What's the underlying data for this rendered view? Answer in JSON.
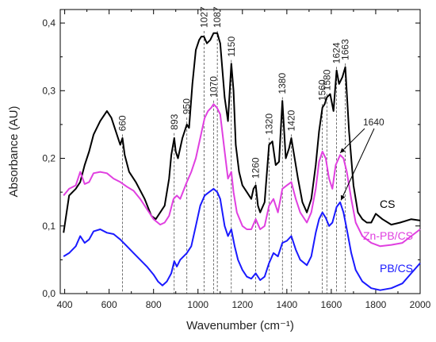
{
  "chart_data": {
    "type": "line",
    "title": "",
    "xlabel": "Wavenumber (cm⁻¹)",
    "ylabel": "Absorbance (AU)",
    "xlim": [
      380,
      2000
    ],
    "ylim": [
      0,
      0.42
    ],
    "x_ticks": [
      "400",
      "600",
      "800",
      "1000",
      "1200",
      "1400",
      "1600",
      "1800",
      "2000"
    ],
    "y_ticks": [
      "0,0",
      "0,1",
      "0,2",
      "0,3",
      "0,4"
    ],
    "x_tick_values": [
      400,
      600,
      800,
      1000,
      1200,
      1400,
      1600,
      1800,
      2000
    ],
    "y_tick_values": [
      0,
      0.1,
      0.2,
      0.3,
      0.4
    ],
    "grid": false,
    "series": [
      {
        "name": "CS",
        "color": "#000000",
        "x": [
          395,
          420,
          450,
          470,
          490,
          510,
          530,
          560,
          590,
          610,
          630,
          650,
          660,
          670,
          690,
          720,
          760,
          790,
          810,
          830,
          850,
          870,
          880,
          893,
          900,
          910,
          930,
          950,
          960,
          975,
          990,
          1005,
          1015,
          1027,
          1040,
          1055,
          1070,
          1087,
          1100,
          1120,
          1135,
          1150,
          1160,
          1170,
          1185,
          1200,
          1220,
          1240,
          1250,
          1260,
          1270,
          1280,
          1300,
          1320,
          1335,
          1350,
          1365,
          1380,
          1395,
          1410,
          1420,
          1430,
          1450,
          1470,
          1490,
          1510,
          1530,
          1545,
          1560,
          1570,
          1580,
          1595,
          1610,
          1624,
          1635,
          1650,
          1663,
          1680,
          1700,
          1720,
          1740,
          1760,
          1780,
          1800,
          1830,
          1870,
          1910,
          1960,
          2000
        ],
        "y": [
          0.09,
          0.145,
          0.155,
          0.165,
          0.19,
          0.21,
          0.235,
          0.255,
          0.27,
          0.26,
          0.24,
          0.22,
          0.23,
          0.205,
          0.18,
          0.165,
          0.14,
          0.115,
          0.11,
          0.12,
          0.13,
          0.17,
          0.205,
          0.23,
          0.21,
          0.2,
          0.23,
          0.25,
          0.245,
          0.31,
          0.36,
          0.375,
          0.38,
          0.38,
          0.37,
          0.375,
          0.385,
          0.385,
          0.37,
          0.29,
          0.255,
          0.34,
          0.3,
          0.22,
          0.18,
          0.16,
          0.15,
          0.14,
          0.155,
          0.16,
          0.13,
          0.12,
          0.135,
          0.22,
          0.225,
          0.19,
          0.195,
          0.285,
          0.2,
          0.215,
          0.23,
          0.21,
          0.17,
          0.135,
          0.12,
          0.14,
          0.19,
          0.24,
          0.275,
          0.28,
          0.29,
          0.295,
          0.27,
          0.33,
          0.31,
          0.32,
          0.335,
          0.24,
          0.16,
          0.12,
          0.11,
          0.105,
          0.105,
          0.118,
          0.11,
          0.102,
          0.105,
          0.11,
          0.108
        ]
      },
      {
        "name": "Zn-PB/CS",
        "color": "#e040e0",
        "x": [
          395,
          420,
          450,
          470,
          490,
          510,
          530,
          560,
          590,
          620,
          650,
          680,
          710,
          740,
          770,
          800,
          830,
          850,
          870,
          890,
          905,
          920,
          950,
          970,
          990,
          1010,
          1030,
          1045,
          1060,
          1070,
          1085,
          1100,
          1120,
          1135,
          1150,
          1160,
          1175,
          1200,
          1220,
          1240,
          1260,
          1280,
          1300,
          1320,
          1340,
          1360,
          1380,
          1400,
          1420,
          1440,
          1460,
          1490,
          1510,
          1530,
          1545,
          1560,
          1575,
          1590,
          1605,
          1620,
          1640,
          1655,
          1670,
          1690,
          1710,
          1740,
          1780,
          1820,
          1870,
          1920,
          1960,
          2000
        ],
        "y": [
          0.145,
          0.155,
          0.16,
          0.18,
          0.162,
          0.165,
          0.178,
          0.18,
          0.178,
          0.17,
          0.165,
          0.158,
          0.152,
          0.14,
          0.125,
          0.11,
          0.102,
          0.105,
          0.115,
          0.14,
          0.145,
          0.14,
          0.165,
          0.18,
          0.2,
          0.23,
          0.26,
          0.27,
          0.275,
          0.28,
          0.275,
          0.265,
          0.21,
          0.17,
          0.18,
          0.15,
          0.12,
          0.1,
          0.095,
          0.095,
          0.11,
          0.095,
          0.1,
          0.13,
          0.14,
          0.12,
          0.155,
          0.16,
          0.165,
          0.14,
          0.12,
          0.105,
          0.12,
          0.155,
          0.195,
          0.21,
          0.2,
          0.17,
          0.155,
          0.19,
          0.205,
          0.2,
          0.18,
          0.14,
          0.105,
          0.085,
          0.075,
          0.07,
          0.072,
          0.075,
          0.085,
          0.095
        ]
      },
      {
        "name": "PB/CS",
        "color": "#1a1aff",
        "x": [
          395,
          420,
          450,
          470,
          490,
          510,
          530,
          560,
          590,
          620,
          650,
          680,
          710,
          740,
          770,
          800,
          820,
          840,
          860,
          880,
          893,
          905,
          920,
          950,
          970,
          990,
          1010,
          1030,
          1050,
          1070,
          1087,
          1100,
          1120,
          1135,
          1150,
          1165,
          1180,
          1200,
          1220,
          1240,
          1260,
          1280,
          1300,
          1320,
          1340,
          1360,
          1380,
          1400,
          1420,
          1440,
          1460,
          1490,
          1510,
          1530,
          1545,
          1560,
          1575,
          1590,
          1605,
          1624,
          1640,
          1655,
          1670,
          1690,
          1710,
          1740,
          1780,
          1820,
          1870,
          1920,
          1960,
          2000
        ],
        "y": [
          0.055,
          0.06,
          0.07,
          0.085,
          0.075,
          0.08,
          0.092,
          0.095,
          0.09,
          0.088,
          0.08,
          0.07,
          0.06,
          0.05,
          0.04,
          0.028,
          0.018,
          0.012,
          0.018,
          0.03,
          0.048,
          0.04,
          0.05,
          0.06,
          0.07,
          0.1,
          0.13,
          0.145,
          0.15,
          0.155,
          0.15,
          0.14,
          0.1,
          0.085,
          0.095,
          0.07,
          0.05,
          0.035,
          0.025,
          0.022,
          0.03,
          0.02,
          0.025,
          0.045,
          0.06,
          0.055,
          0.075,
          0.078,
          0.085,
          0.065,
          0.05,
          0.042,
          0.055,
          0.09,
          0.11,
          0.12,
          0.112,
          0.1,
          0.105,
          0.128,
          0.135,
          0.12,
          0.095,
          0.06,
          0.035,
          0.018,
          0.008,
          0.005,
          0.008,
          0.015,
          0.03,
          0.045
        ]
      }
    ],
    "peaks": [
      {
        "label": "660",
        "x": 660,
        "y": 0.24
      },
      {
        "label": "893",
        "x": 893,
        "y": 0.242
      },
      {
        "label": "950",
        "x": 950,
        "y": 0.265
      },
      {
        "label": "1027",
        "x": 1027,
        "y": 0.393
      },
      {
        "label": "1070",
        "x": 1070,
        "y": 0.29
      },
      {
        "label": "1087",
        "x": 1087,
        "y": 0.393
      },
      {
        "label": "1150",
        "x": 1150,
        "y": 0.35
      },
      {
        "label": "1260",
        "x": 1260,
        "y": 0.17
      },
      {
        "label": "1320",
        "x": 1320,
        "y": 0.235
      },
      {
        "label": "1380",
        "x": 1380,
        "y": 0.295
      },
      {
        "label": "1420",
        "x": 1420,
        "y": 0.24
      },
      {
        "label": "1560",
        "x": 1560,
        "y": 0.285
      },
      {
        "label": "1580",
        "x": 1580,
        "y": 0.3
      },
      {
        "label": "1624",
        "x": 1624,
        "y": 0.34
      },
      {
        "label": "1663",
        "x": 1663,
        "y": 0.345
      }
    ],
    "annotation": {
      "label": "1640"
    },
    "series_labels": [
      "CS",
      "Zn-PB/CS",
      "PB/CS"
    ]
  }
}
